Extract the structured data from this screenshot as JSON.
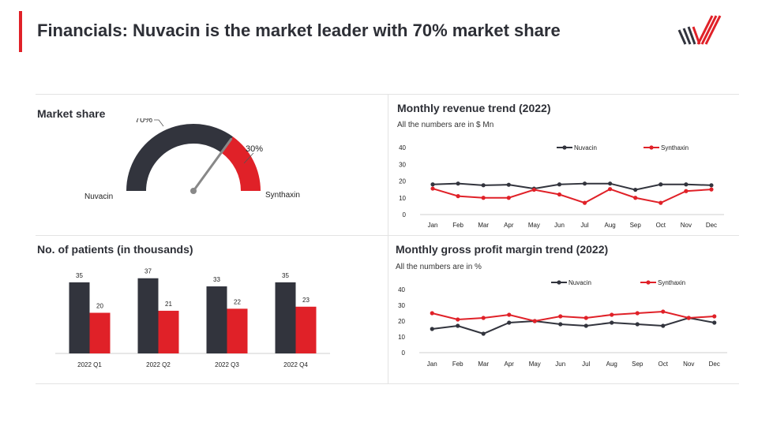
{
  "page": {
    "title": "Financials: Nuvacin is the market leader with 70% market share"
  },
  "colors": {
    "accent": "#e02128",
    "dark": "#32343d",
    "nuvacin": "#32343d",
    "synthaxin": "#e02128"
  },
  "logo": {
    "icon": "striped-check-logo-icon"
  },
  "chart_data": [
    {
      "type": "gauge",
      "title": "Market share",
      "slices": [
        {
          "name": "Nuvacin",
          "value": 70,
          "label": "70%"
        },
        {
          "name": "Synthaxin",
          "value": 30,
          "label": "30%"
        }
      ],
      "needle_value": 70
    },
    {
      "type": "line",
      "title": "Monthly revenue trend (2022)",
      "subtitle": "All the numbers are in $ Mn",
      "categories": [
        "Jan",
        "Feb",
        "Mar",
        "Apr",
        "May",
        "Jun",
        "Jul",
        "Aug",
        "Sep",
        "Oct",
        "Nov",
        "Dec"
      ],
      "series": [
        {
          "name": "Nuvacin",
          "values": [
            18,
            18.5,
            17.5,
            17.8,
            15.5,
            18,
            18.5,
            18.5,
            14.8,
            18,
            18,
            17.5
          ]
        },
        {
          "name": "Synthaxin",
          "values": [
            15.5,
            11,
            10,
            10,
            14.8,
            12,
            7,
            15.2,
            10,
            7,
            14,
            15
          ]
        }
      ],
      "ylim": [
        0,
        40
      ],
      "yticks": [
        0,
        10,
        20,
        30,
        40
      ],
      "legend": "top-right",
      "grid": false
    },
    {
      "type": "bar",
      "title": "No. of patients (in thousands)",
      "categories": [
        "2022 Q1",
        "2022 Q2",
        "2022 Q3",
        "2022 Q4"
      ],
      "series": [
        {
          "name": "Nuvacin",
          "values": [
            35,
            37,
            33,
            35
          ]
        },
        {
          "name": "Synthaxin",
          "values": [
            20,
            21,
            22,
            23
          ]
        }
      ],
      "ylim": [
        0,
        40
      ],
      "grid": false
    },
    {
      "type": "line",
      "title": "Monthly gross profit margin trend (2022)",
      "subtitle": "All the numbers are in %",
      "categories": [
        "Jan",
        "Feb",
        "Mar",
        "Apr",
        "May",
        "Jun",
        "Jul",
        "Aug",
        "Sep",
        "Oct",
        "Nov",
        "Dec"
      ],
      "series": [
        {
          "name": "Nuvacin",
          "values": [
            15,
            17,
            12,
            19,
            20,
            18,
            17,
            19,
            18,
            17,
            22,
            19
          ]
        },
        {
          "name": "Synthaxin",
          "values": [
            25,
            21,
            22,
            24,
            20,
            23,
            22,
            24,
            25,
            26,
            22,
            23
          ]
        }
      ],
      "ylim": [
        0,
        40
      ],
      "yticks": [
        0,
        10,
        20,
        30,
        40
      ],
      "legend": "top-right",
      "grid": false
    }
  ]
}
